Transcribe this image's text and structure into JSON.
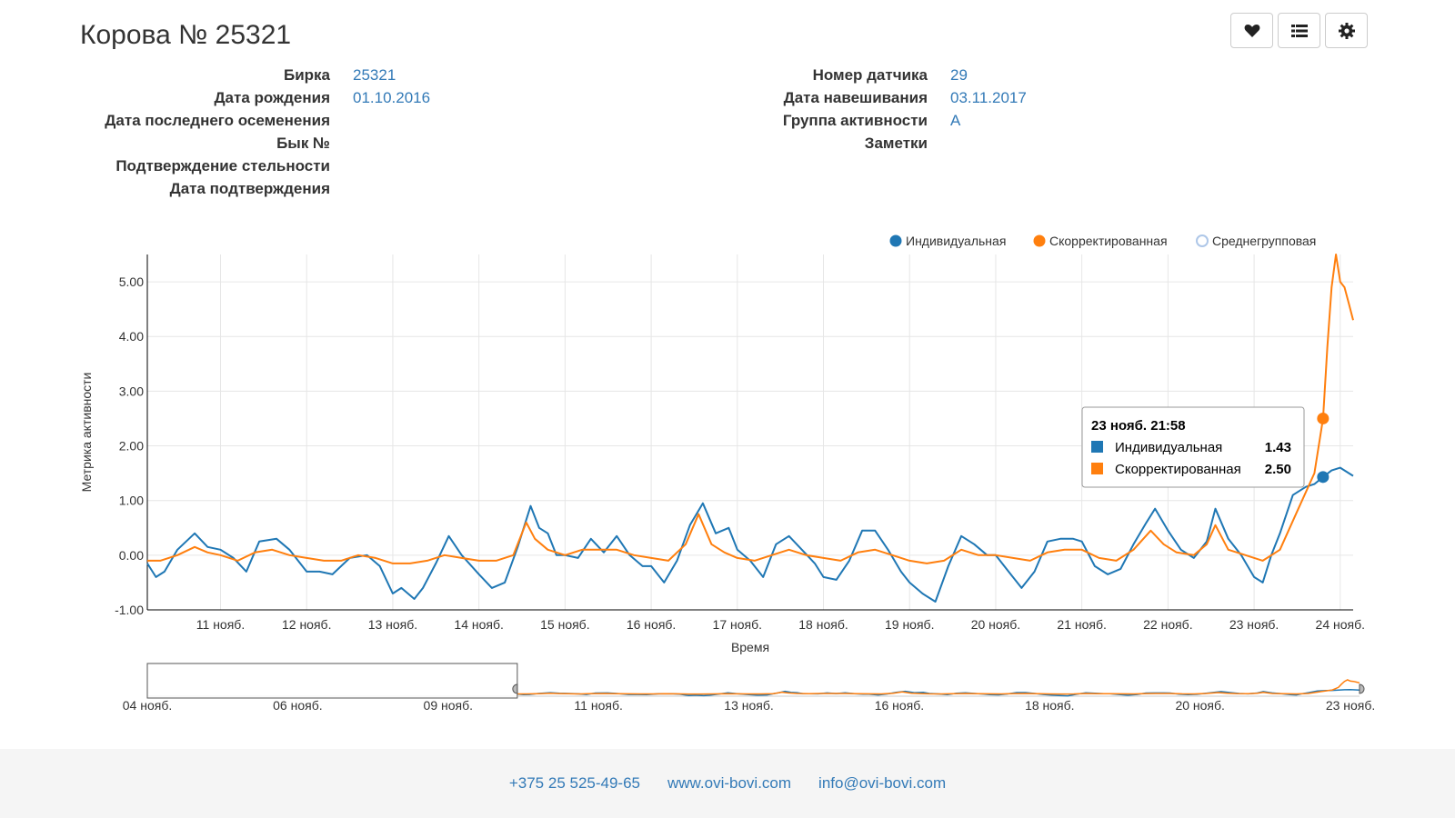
{
  "page": {
    "title": "Корова № 25321"
  },
  "toolbar": {
    "buttons": [
      {
        "name": "heart-button",
        "icon": "heart-icon"
      },
      {
        "name": "list-button",
        "icon": "list-icon"
      },
      {
        "name": "settings-button",
        "icon": "gear-icon"
      }
    ]
  },
  "info_left": [
    {
      "label": "Бирка",
      "value": "25321"
    },
    {
      "label": "Дата рождения",
      "value": "01.10.2016"
    },
    {
      "label": "Дата последнего осеменения",
      "value": ""
    },
    {
      "label": "Бык №",
      "value": ""
    },
    {
      "label": "Подтверждение стельности",
      "value": ""
    },
    {
      "label": "Дата подтверждения",
      "value": ""
    }
  ],
  "info_right": [
    {
      "label": "Номер датчика",
      "value": "29"
    },
    {
      "label": "Дата навешивания",
      "value": "03.11.2017"
    },
    {
      "label": "Группа активности",
      "value": "A"
    },
    {
      "label": "Заметки",
      "value": ""
    }
  ],
  "chart_data": {
    "type": "line",
    "title": "",
    "xlabel": "Время",
    "ylabel": "Метрика активности",
    "ylim": [
      -1.0,
      5.5
    ],
    "y_ticks": [
      "-1.00",
      "0.00",
      "1.00",
      "2.00",
      "3.00",
      "4.00",
      "5.00"
    ],
    "x_ticks": [
      "11 нояб.",
      "12 нояб.",
      "13 нояб.",
      "14 нояб.",
      "15 нояб.",
      "16 нояб.",
      "17 нояб.",
      "18 нояб.",
      "19 нояб.",
      "20 нояб.",
      "21 нояб.",
      "22 нояб.",
      "23 нояб.",
      "24 нояб."
    ],
    "x_range_days": [
      10.15,
      24.15
    ],
    "grid": true,
    "legend_position": "top-right",
    "series": [
      {
        "name": "Индивидуальная",
        "color": "#1f77b4",
        "style": "filled-circle",
        "points": [
          [
            10.15,
            -0.15
          ],
          [
            10.25,
            -0.4
          ],
          [
            10.35,
            -0.3
          ],
          [
            10.5,
            0.1
          ],
          [
            10.7,
            0.4
          ],
          [
            10.85,
            0.15
          ],
          [
            11.0,
            0.1
          ],
          [
            11.15,
            -0.05
          ],
          [
            11.3,
            -0.3
          ],
          [
            11.45,
            0.25
          ],
          [
            11.65,
            0.3
          ],
          [
            11.8,
            0.1
          ],
          [
            12.0,
            -0.3
          ],
          [
            12.15,
            -0.3
          ],
          [
            12.3,
            -0.35
          ],
          [
            12.5,
            -0.05
          ],
          [
            12.7,
            0.0
          ],
          [
            12.85,
            -0.2
          ],
          [
            13.0,
            -0.7
          ],
          [
            13.1,
            -0.6
          ],
          [
            13.25,
            -0.8
          ],
          [
            13.35,
            -0.6
          ],
          [
            13.5,
            -0.15
          ],
          [
            13.65,
            0.35
          ],
          [
            13.8,
            0.0
          ],
          [
            14.0,
            -0.35
          ],
          [
            14.15,
            -0.6
          ],
          [
            14.3,
            -0.5
          ],
          [
            14.45,
            0.15
          ],
          [
            14.6,
            0.9
          ],
          [
            14.7,
            0.5
          ],
          [
            14.8,
            0.4
          ],
          [
            14.9,
            0.0
          ],
          [
            15.0,
            0.0
          ],
          [
            15.15,
            -0.05
          ],
          [
            15.3,
            0.3
          ],
          [
            15.45,
            0.05
          ],
          [
            15.6,
            0.35
          ],
          [
            15.75,
            0.0
          ],
          [
            15.9,
            -0.2
          ],
          [
            16.0,
            -0.2
          ],
          [
            16.15,
            -0.5
          ],
          [
            16.3,
            -0.1
          ],
          [
            16.45,
            0.55
          ],
          [
            16.6,
            0.95
          ],
          [
            16.75,
            0.4
          ],
          [
            16.9,
            0.5
          ],
          [
            17.0,
            0.1
          ],
          [
            17.15,
            -0.1
          ],
          [
            17.3,
            -0.4
          ],
          [
            17.45,
            0.2
          ],
          [
            17.6,
            0.35
          ],
          [
            17.75,
            0.1
          ],
          [
            17.9,
            -0.15
          ],
          [
            18.0,
            -0.4
          ],
          [
            18.15,
            -0.45
          ],
          [
            18.3,
            -0.1
          ],
          [
            18.45,
            0.45
          ],
          [
            18.6,
            0.45
          ],
          [
            18.75,
            0.1
          ],
          [
            18.9,
            -0.3
          ],
          [
            19.0,
            -0.5
          ],
          [
            19.15,
            -0.7
          ],
          [
            19.3,
            -0.85
          ],
          [
            19.45,
            -0.2
          ],
          [
            19.6,
            0.35
          ],
          [
            19.75,
            0.2
          ],
          [
            19.9,
            0.0
          ],
          [
            20.0,
            0.0
          ],
          [
            20.15,
            -0.3
          ],
          [
            20.3,
            -0.6
          ],
          [
            20.45,
            -0.3
          ],
          [
            20.6,
            0.25
          ],
          [
            20.75,
            0.3
          ],
          [
            20.9,
            0.3
          ],
          [
            21.0,
            0.25
          ],
          [
            21.15,
            -0.2
          ],
          [
            21.3,
            -0.35
          ],
          [
            21.45,
            -0.25
          ],
          [
            21.6,
            0.2
          ],
          [
            21.75,
            0.6
          ],
          [
            21.85,
            0.85
          ],
          [
            22.0,
            0.45
          ],
          [
            22.15,
            0.1
          ],
          [
            22.3,
            -0.05
          ],
          [
            22.45,
            0.25
          ],
          [
            22.55,
            0.85
          ],
          [
            22.7,
            0.3
          ],
          [
            22.85,
            0.0
          ],
          [
            23.0,
            -0.4
          ],
          [
            23.1,
            -0.5
          ],
          [
            23.2,
            0.0
          ],
          [
            23.3,
            0.4
          ],
          [
            23.45,
            1.1
          ],
          [
            23.6,
            1.25
          ],
          [
            23.7,
            1.3
          ],
          [
            23.8,
            1.43
          ],
          [
            23.9,
            1.55
          ],
          [
            24.0,
            1.6
          ],
          [
            24.15,
            1.45
          ]
        ]
      },
      {
        "name": "Скорректированная",
        "color": "#ff7f0e",
        "style": "filled-circle",
        "points": [
          [
            10.15,
            -0.1
          ],
          [
            10.3,
            -0.1
          ],
          [
            10.5,
            0.0
          ],
          [
            10.7,
            0.15
          ],
          [
            10.85,
            0.05
          ],
          [
            11.0,
            0.0
          ],
          [
            11.2,
            -0.1
          ],
          [
            11.4,
            0.05
          ],
          [
            11.6,
            0.1
          ],
          [
            11.8,
            0.0
          ],
          [
            12.0,
            -0.05
          ],
          [
            12.2,
            -0.1
          ],
          [
            12.4,
            -0.1
          ],
          [
            12.6,
            0.0
          ],
          [
            12.8,
            -0.05
          ],
          [
            13.0,
            -0.15
          ],
          [
            13.2,
            -0.15
          ],
          [
            13.4,
            -0.1
          ],
          [
            13.6,
            0.0
          ],
          [
            13.8,
            -0.05
          ],
          [
            14.0,
            -0.1
          ],
          [
            14.2,
            -0.1
          ],
          [
            14.4,
            0.0
          ],
          [
            14.55,
            0.6
          ],
          [
            14.65,
            0.3
          ],
          [
            14.8,
            0.1
          ],
          [
            15.0,
            0.0
          ],
          [
            15.2,
            0.1
          ],
          [
            15.4,
            0.1
          ],
          [
            15.6,
            0.1
          ],
          [
            15.8,
            0.0
          ],
          [
            16.0,
            -0.05
          ],
          [
            16.2,
            -0.1
          ],
          [
            16.4,
            0.2
          ],
          [
            16.55,
            0.75
          ],
          [
            16.7,
            0.2
          ],
          [
            16.85,
            0.05
          ],
          [
            17.0,
            -0.05
          ],
          [
            17.2,
            -0.1
          ],
          [
            17.4,
            0.0
          ],
          [
            17.6,
            0.1
          ],
          [
            17.8,
            0.0
          ],
          [
            18.0,
            -0.05
          ],
          [
            18.2,
            -0.1
          ],
          [
            18.4,
            0.05
          ],
          [
            18.6,
            0.1
          ],
          [
            18.8,
            0.0
          ],
          [
            19.0,
            -0.1
          ],
          [
            19.2,
            -0.15
          ],
          [
            19.4,
            -0.1
          ],
          [
            19.6,
            0.1
          ],
          [
            19.8,
            0.0
          ],
          [
            20.0,
            0.0
          ],
          [
            20.2,
            -0.05
          ],
          [
            20.4,
            -0.1
          ],
          [
            20.6,
            0.05
          ],
          [
            20.8,
            0.1
          ],
          [
            21.0,
            0.1
          ],
          [
            21.2,
            -0.05
          ],
          [
            21.4,
            -0.1
          ],
          [
            21.6,
            0.1
          ],
          [
            21.8,
            0.45
          ],
          [
            21.95,
            0.2
          ],
          [
            22.1,
            0.05
          ],
          [
            22.3,
            0.0
          ],
          [
            22.45,
            0.2
          ],
          [
            22.55,
            0.55
          ],
          [
            22.7,
            0.1
          ],
          [
            22.9,
            0.0
          ],
          [
            23.1,
            -0.1
          ],
          [
            23.3,
            0.1
          ],
          [
            23.5,
            0.8
          ],
          [
            23.7,
            1.5
          ],
          [
            23.8,
            2.5
          ],
          [
            23.85,
            3.8
          ],
          [
            23.9,
            4.9
          ],
          [
            23.95,
            5.5
          ],
          [
            24.0,
            5.0
          ],
          [
            24.05,
            4.9
          ],
          [
            24.1,
            4.6
          ],
          [
            24.15,
            4.3
          ]
        ]
      },
      {
        "name": "Среднегрупповая",
        "color": "#aec7e8",
        "style": "hollow-circle",
        "points": []
      }
    ],
    "tooltip": {
      "title": "23 нояб. 21:58",
      "x": 23.8,
      "rows": [
        {
          "name": "Индивидуальная",
          "value": "1.43",
          "color": "#1f77b4",
          "y": 1.43
        },
        {
          "name": "Скорректированная",
          "value": "2.50",
          "color": "#ff7f0e",
          "y": 2.5
        }
      ]
    },
    "navigator": {
      "x_range_days": [
        4.0,
        24.15
      ],
      "x_ticks": [
        "04 нояб.",
        "06 нояб.",
        "09 нояб.",
        "11 нояб.",
        "13 нояб.",
        "16 нояб.",
        "18 нояб.",
        "20 нояб.",
        "23 нояб."
      ],
      "selection_days": [
        4.0,
        10.15
      ]
    }
  },
  "footer": {
    "phone": "+375 25 525-49-65",
    "site": "www.ovi-bovi.com",
    "email": "info@ovi-bovi.com"
  }
}
